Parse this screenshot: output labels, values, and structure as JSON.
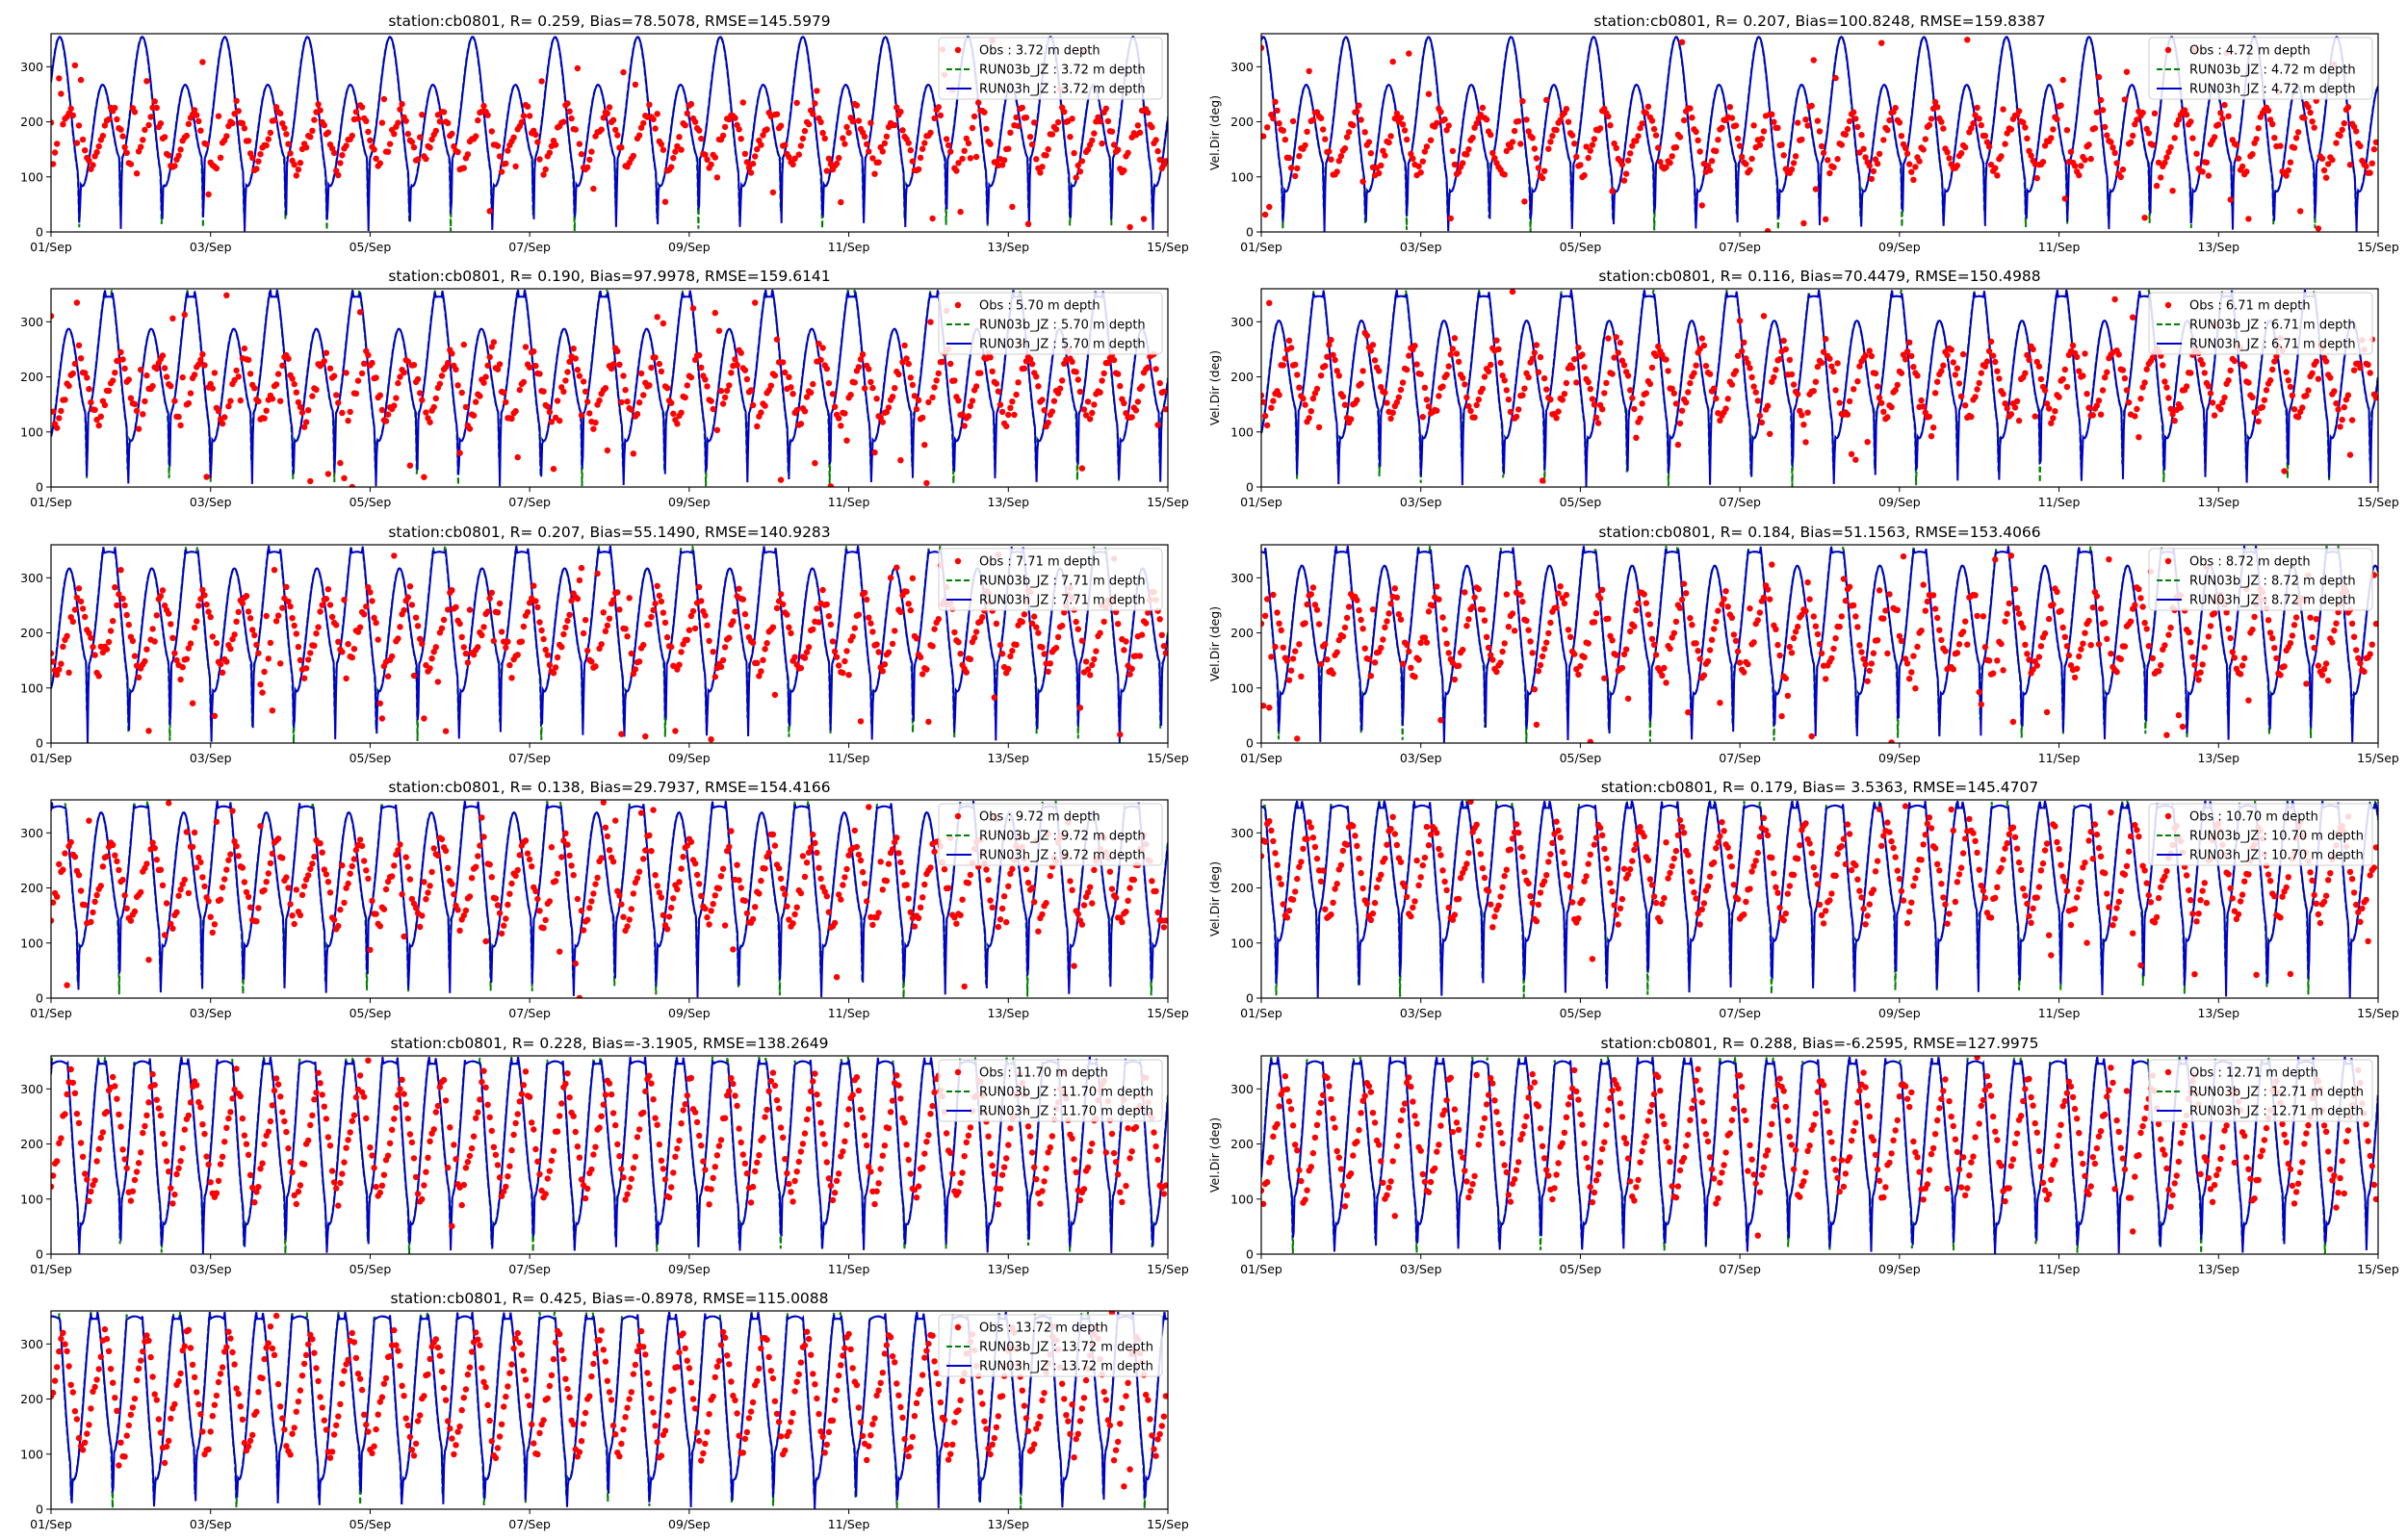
{
  "figure": {
    "background": "#ffffff"
  },
  "colors": {
    "obs": "#ff0000",
    "run03b": "#008000",
    "run03h": "#0000cc"
  },
  "chart_data": [
    {
      "type": "line",
      "title": "station:cb0801, R= 0.259, Bias=78.5078, RMSE=145.5979",
      "ylabel": "",
      "depth_m": 3.72,
      "obs_mean": 170,
      "obs_amp": 70,
      "wrap": 0.45,
      "legend": [
        "Obs : 3.72 m depth",
        "RUN03b_JZ : 3.72 m depth",
        "RUN03h_JZ : 3.72 m depth"
      ]
    },
    {
      "type": "line",
      "title": "station:cb0801, R= 0.207, Bias=100.8248, RMSE=159.8387",
      "ylabel": "Vel.Dir (deg)",
      "depth_m": 4.72,
      "obs_mean": 165,
      "obs_amp": 75,
      "wrap": 0.45,
      "legend": [
        "Obs : 4.72 m depth",
        "RUN03b_JZ : 4.72 m depth",
        "RUN03h_JZ : 4.72 m depth"
      ]
    },
    {
      "type": "line",
      "title": "station:cb0801, R= 0.190, Bias=97.9978, RMSE=159.6141",
      "ylabel": "",
      "depth_m": 5.7,
      "obs_mean": 180,
      "obs_amp": 80,
      "wrap": 0.45,
      "legend": [
        "Obs : 5.70 m depth",
        "RUN03b_JZ : 5.70 m depth",
        "RUN03h_JZ : 5.70 m depth"
      ]
    },
    {
      "type": "line",
      "title": "station:cb0801, R= 0.116, Bias=70.4479, RMSE=150.4988",
      "ylabel": "Vel.Dir (deg)",
      "depth_m": 6.71,
      "obs_mean": 190,
      "obs_amp": 85,
      "wrap": 0.45,
      "legend": [
        "Obs : 6.71 m depth",
        "RUN03b_JZ : 6.71 m depth",
        "RUN03h_JZ : 6.71 m depth"
      ]
    },
    {
      "type": "line",
      "title": "station:cb0801, R= 0.207, Bias=55.1490, RMSE=140.9283",
      "ylabel": "",
      "depth_m": 7.71,
      "obs_mean": 200,
      "obs_amp": 90,
      "wrap": 0.45,
      "legend": [
        "Obs : 7.71 m depth",
        "RUN03b_JZ : 7.71 m depth",
        "RUN03h_JZ : 7.71 m depth"
      ]
    },
    {
      "type": "line",
      "title": "station:cb0801, R= 0.184, Bias=51.1563, RMSE=153.4066",
      "ylabel": "Vel.Dir (deg)",
      "depth_m": 8.72,
      "obs_mean": 200,
      "obs_amp": 95,
      "wrap": 0.45,
      "legend": [
        "Obs : 8.72 m depth",
        "RUN03b_JZ : 8.72 m depth",
        "RUN03h_JZ : 8.72 m depth"
      ]
    },
    {
      "type": "line",
      "title": "station:cb0801, R= 0.138, Bias=29.7937, RMSE=154.4166",
      "ylabel": "",
      "depth_m": 9.72,
      "obs_mean": 210,
      "obs_amp": 100,
      "wrap": 0.45,
      "legend": [
        "Obs : 9.72 m depth",
        "RUN03b_JZ : 9.72 m depth",
        "RUN03h_JZ : 9.72 m depth"
      ]
    },
    {
      "type": "line",
      "title": "station:cb0801, R= 0.179, Bias= 3.5363, RMSE=145.4707",
      "ylabel": "Vel.Dir (deg)",
      "depth_m": 10.7,
      "obs_mean": 230,
      "obs_amp": 110,
      "wrap": 0.2,
      "legend": [
        "Obs : 10.70 m depth",
        "RUN03b_JZ : 10.70 m depth",
        "RUN03h_JZ : 10.70 m depth"
      ]
    },
    {
      "type": "line",
      "title": "station:cb0801, R= 0.228, Bias=-3.1905, RMSE=138.2649",
      "ylabel": "",
      "depth_m": 11.7,
      "obs_mean": 210,
      "obs_amp": 140,
      "wrap": 0.1,
      "legend": [
        "Obs : 11.70 m depth",
        "RUN03b_JZ : 11.70 m depth",
        "RUN03h_JZ : 11.70 m depth"
      ]
    },
    {
      "type": "line",
      "title": "station:cb0801, R= 0.288, Bias=-6.2595, RMSE=127.9975",
      "ylabel": "Vel.Dir (deg)",
      "depth_m": 12.71,
      "obs_mean": 210,
      "obs_amp": 140,
      "wrap": 0.1,
      "legend": [
        "Obs : 12.71 m depth",
        "RUN03b_JZ : 12.71 m depth",
        "RUN03h_JZ : 12.71 m depth"
      ]
    },
    {
      "type": "line",
      "title": "station:cb0801, R= 0.425, Bias=-0.8978, RMSE=115.0088",
      "ylabel": "",
      "depth_m": 13.72,
      "obs_mean": 210,
      "obs_amp": 140,
      "wrap": 0.08,
      "legend": [
        "Obs : 13.72 m depth",
        "RUN03b_JZ : 13.72 m depth",
        "RUN03h_JZ : 13.72 m depth"
      ]
    }
  ],
  "axes": {
    "x_ticks": [
      "01/Sep",
      "03/Sep",
      "05/Sep",
      "07/Sep",
      "09/Sep",
      "11/Sep",
      "13/Sep",
      "15/Sep"
    ],
    "x_range_days": [
      0,
      14
    ],
    "y_ticks": [
      0,
      100,
      200,
      300
    ],
    "y_range": [
      0,
      360
    ]
  }
}
